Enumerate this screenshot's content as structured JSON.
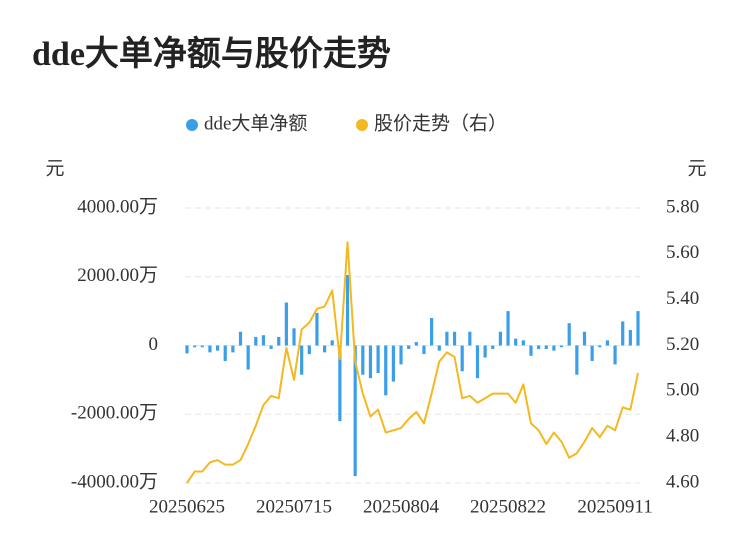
{
  "chart_data": {
    "type": "bar-line",
    "title": "dde大单净额与股价走势",
    "y_unit": "元",
    "y2_unit": "元",
    "categories": [
      "20250625",
      null,
      null,
      null,
      null,
      null,
      null,
      null,
      null,
      null,
      null,
      null,
      null,
      null,
      "20250715",
      null,
      null,
      null,
      null,
      null,
      null,
      null,
      null,
      null,
      null,
      null,
      null,
      null,
      "20250804",
      null,
      null,
      null,
      null,
      null,
      null,
      null,
      null,
      null,
      null,
      null,
      null,
      null,
      "20250822",
      null,
      null,
      null,
      null,
      null,
      null,
      null,
      null,
      null,
      null,
      null,
      null,
      null,
      "20250911",
      null,
      null,
      null
    ],
    "series": [
      {
        "name": "dde大单净额",
        "type": "bar",
        "color": "#3b9fe8",
        "axis": "y",
        "values": [
          -230,
          -50,
          -50,
          -200,
          -150,
          -450,
          -200,
          400,
          -700,
          250,
          300,
          -100,
          250,
          1250,
          500,
          -850,
          -250,
          950,
          -200,
          150,
          -2200,
          2050,
          -3800,
          -850,
          -950,
          -800,
          -1450,
          -1050,
          -550,
          -100,
          100,
          -250,
          800,
          -150,
          400,
          400,
          -750,
          400,
          -950,
          -350,
          -100,
          400,
          1000,
          200,
          150,
          -300,
          -100,
          -100,
          -150,
          -50,
          650,
          -850,
          400,
          -450,
          -50,
          150,
          -550,
          700,
          450,
          1000
        ]
      },
      {
        "name": "股价走势（右）",
        "type": "line",
        "color": "#f4b820",
        "axis": "y2",
        "values": [
          4.6,
          4.65,
          4.65,
          4.69,
          4.7,
          4.68,
          4.68,
          4.7,
          4.77,
          4.85,
          4.94,
          4.98,
          4.97,
          5.19,
          5.05,
          5.27,
          5.3,
          5.36,
          5.37,
          5.44,
          5.14,
          5.65,
          5.13,
          4.99,
          4.89,
          4.92,
          4.82,
          4.83,
          4.84,
          4.88,
          4.91,
          4.86,
          4.99,
          5.13,
          5.17,
          5.15,
          4.97,
          4.98,
          4.95,
          4.97,
          4.99,
          4.99,
          4.99,
          4.95,
          5.03,
          4.86,
          4.83,
          4.77,
          4.82,
          4.78,
          4.71,
          4.73,
          4.78,
          4.84,
          4.8,
          4.85,
          4.83,
          4.93,
          4.92,
          5.08
        ]
      }
    ],
    "ylim": [
      -4000,
      4000
    ],
    "yticks": [
      {
        "value": -4000,
        "label": "-4000.00万"
      },
      {
        "value": -2000,
        "label": "-2000.00万"
      },
      0,
      {
        "value": 2000,
        "label": "2000.00万"
      },
      {
        "value": 4000,
        "label": "4000.00万"
      }
    ],
    "y2lim": [
      4.6,
      5.8
    ],
    "y2ticks": [
      {
        "value": 4.6,
        "label": "4.60"
      },
      {
        "value": 4.8,
        "label": "4.80"
      },
      {
        "value": 5.0,
        "label": "5.00"
      },
      {
        "value": 5.2,
        "label": "5.20"
      },
      {
        "value": 5.4,
        "label": "5.40"
      },
      {
        "value": 5.6,
        "label": "5.60"
      },
      {
        "value": 5.8,
        "label": "5.80"
      }
    ],
    "grid": true,
    "legend": "top"
  }
}
